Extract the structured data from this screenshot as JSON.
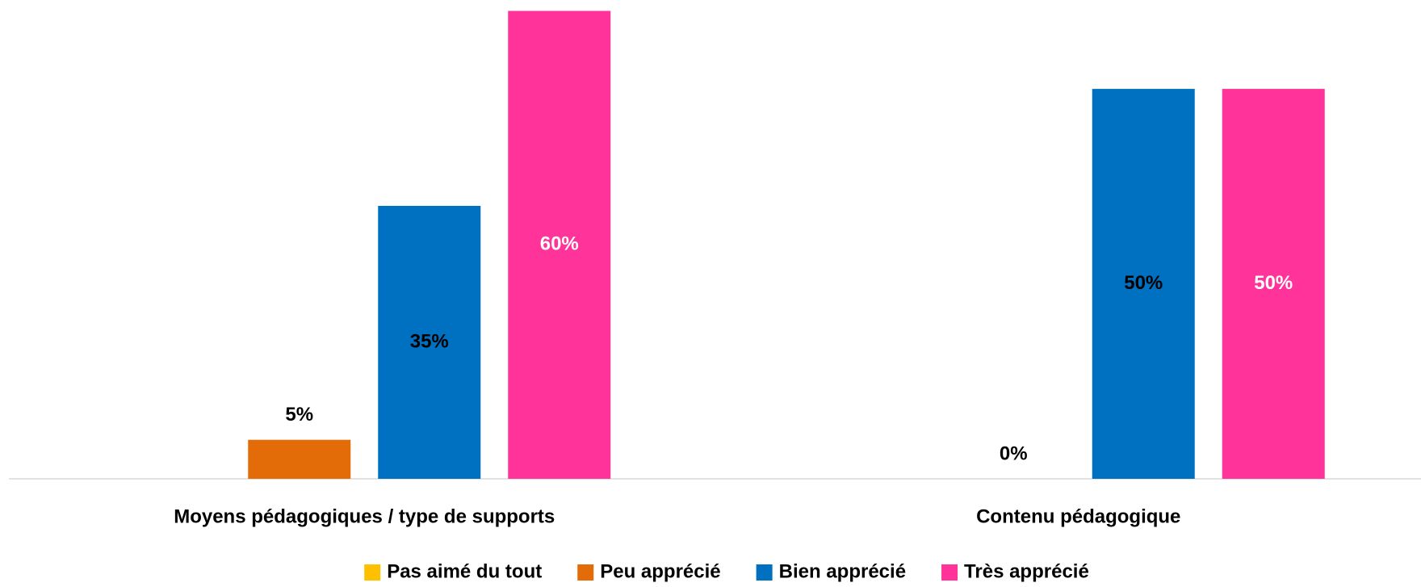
{
  "chart_data": {
    "type": "bar",
    "categories": [
      "Moyens pédagogiques / type de supports",
      "Contenu pédagogique"
    ],
    "series": [
      {
        "name": "Pas aimé du tout",
        "color": "#FFC000",
        "values": [
          0,
          0
        ]
      },
      {
        "name": "Peu apprécié",
        "color": "#E36C09",
        "values": [
          5,
          0
        ],
        "value_labels": [
          "5%",
          "0%"
        ],
        "label_color": "#000000"
      },
      {
        "name": "Bien apprécié",
        "color": "#0070C0",
        "values": [
          35,
          50
        ],
        "value_labels": [
          "35%",
          "50%"
        ],
        "label_color": "#000000"
      },
      {
        "name": "Très apprécié",
        "color": "#FF3399",
        "values": [
          60,
          50
        ],
        "value_labels": [
          "60%",
          "50%"
        ],
        "label_color": "#FFFFFF"
      }
    ],
    "ylim": [
      0,
      60
    ],
    "legend": "bottom"
  }
}
